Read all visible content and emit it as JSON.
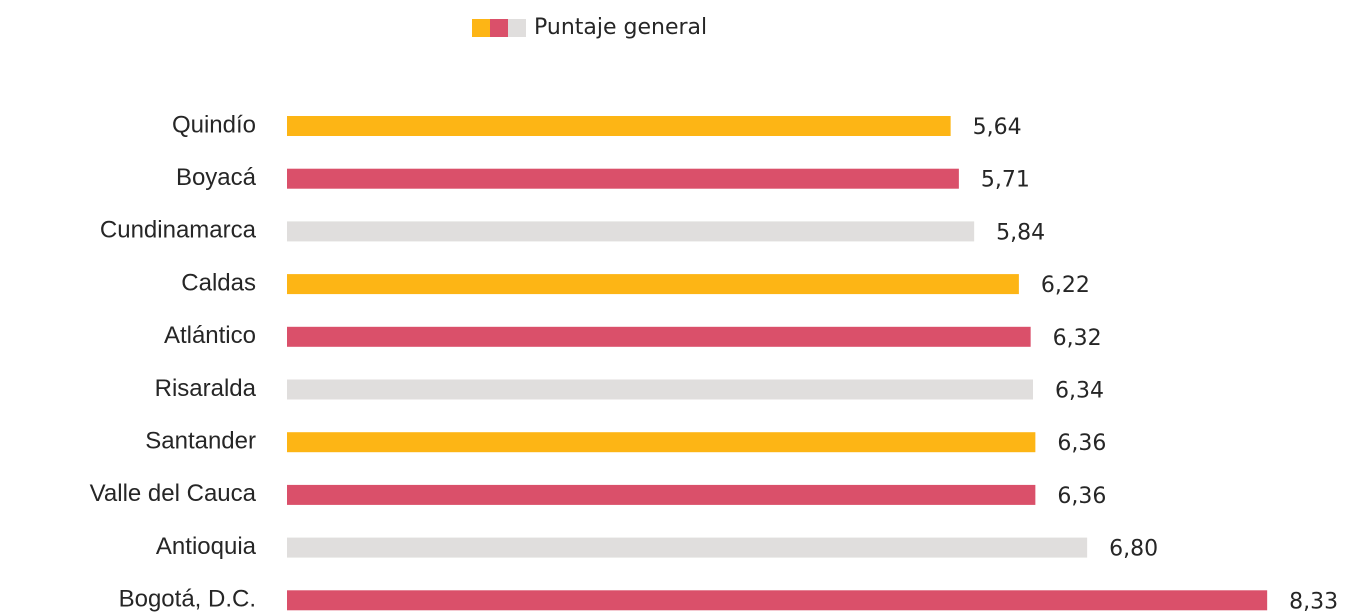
{
  "chart_data": {
    "type": "hbar",
    "categories": [
      "Quindío",
      "Boyacá",
      "Cundinamarca",
      "Caldas",
      "Atlántico",
      "Risaralda",
      "Santander",
      "Valle del Cauca",
      "Antioquia",
      "Bogotá, D.C."
    ],
    "series": [
      {
        "name": "Puntaje general",
        "colors": [
          "#FDB515",
          "#DA506A",
          "#E0DEDD",
          "#FDB515",
          "#DA506A",
          "#E0DEDD",
          "#FDB515",
          "#DA506A",
          "#E0DEDD",
          "#DA506A"
        ],
        "values": [
          5.64,
          5.71,
          5.84,
          6.22,
          6.32,
          6.34,
          6.36,
          6.36,
          6.8,
          8.33
        ],
        "value_labels": [
          "5,64",
          "5,71",
          "5,84",
          "6,22",
          "6,32",
          "6,34",
          "6,36",
          "6,36",
          "6,80",
          "8,33"
        ]
      }
    ],
    "xlim": [
      0,
      9
    ]
  }
}
